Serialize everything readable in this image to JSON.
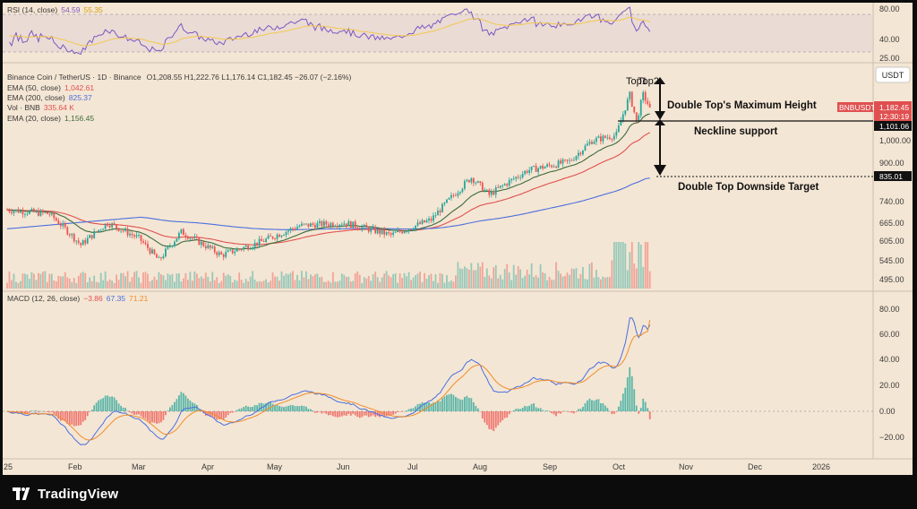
{
  "brand": "TradingView",
  "colors": {
    "background": "#f4e6d4",
    "frame": "#0c0c0c",
    "candle_up": "#26a69a",
    "candle_down": "#ef5350",
    "ema50": "#e05050",
    "ema200": "#4a6fe0",
    "ema20": "#3d6b3d",
    "rsi_line": "#7e57c2",
    "rsi_ma": "#f2c94c",
    "macd_line": "#4a6fe0",
    "signal_line": "#f08c2a",
    "price_tag": "#e05050"
  },
  "rsi": {
    "legend": "RSI (14, close)",
    "value": "54.59",
    "ma_value": "55.35",
    "ticks": [
      "80.00",
      "40.00",
      "25.00"
    ]
  },
  "price": {
    "currency": "USDT",
    "legend_title": "Binance Coin / TetherUS · 1D · Binance",
    "ohlc": "O1,208.55  H1,222.76  L1,176.14  C1,182.45  −26.07 (−2.16%)",
    "indicators": [
      {
        "label": "EMA (50, close)",
        "value": "1,042.61",
        "color": "#e05050"
      },
      {
        "label": "EMA (200, close)",
        "value": "825.37",
        "color": "#4a6fe0"
      },
      {
        "label": "Vol · BNB",
        "value": "335.64 K",
        "color": "#e05050"
      },
      {
        "label": "EMA (20, close)",
        "value": "1,156.45",
        "color": "#3d6b3d"
      }
    ],
    "ticks": [
      "1,000.00",
      "900.00",
      "740.00",
      "665.00",
      "605.00",
      "545.00",
      "495.00"
    ],
    "tag_symbol": "BNBUSDT",
    "tag_price": "1,182.45",
    "tag_time": "12:30:19",
    "neckline_label": "1,101.06",
    "target_label": "835.01"
  },
  "annotations": {
    "top1": "Top1",
    "top2": "Top2",
    "max_height": "Double Top's Maximum Height",
    "neckline": "Neckline support",
    "target": "Double Top Downside Target"
  },
  "macd": {
    "legend": "MACD (12, 26, close)",
    "hist": "−3.86",
    "macd": "67.35",
    "signal": "71.21",
    "ticks": [
      "80.00",
      "60.00",
      "40.00",
      "20.00",
      "0.00",
      "−20.00"
    ]
  },
  "x_axis": [
    "25",
    "Feb",
    "Mar",
    "Apr",
    "May",
    "Jun",
    "Jul",
    "Aug",
    "Sep",
    "Oct",
    "Nov",
    "Dec",
    "2026"
  ],
  "chart_data": {
    "type": "candlestick",
    "title": "Binance Coin / TetherUS · 1D · Binance",
    "x_period": "daily, Jan 2025 - Oct 2025",
    "ylim": [
      440,
      1300
    ],
    "price_keypoints": [
      {
        "date": "2025-01-01",
        "close": 705
      },
      {
        "date": "2025-01-20",
        "close": 690
      },
      {
        "date": "2025-02-03",
        "close": 590
      },
      {
        "date": "2025-02-15",
        "close": 660
      },
      {
        "date": "2025-03-01",
        "close": 610
      },
      {
        "date": "2025-03-10",
        "close": 545
      },
      {
        "date": "2025-03-20",
        "close": 630
      },
      {
        "date": "2025-04-07",
        "close": 560
      },
      {
        "date": "2025-04-25",
        "close": 600
      },
      {
        "date": "2025-05-12",
        "close": 650
      },
      {
        "date": "2025-06-01",
        "close": 660
      },
      {
        "date": "2025-06-22",
        "close": 620
      },
      {
        "date": "2025-07-10",
        "close": 670
      },
      {
        "date": "2025-07-28",
        "close": 830
      },
      {
        "date": "2025-08-05",
        "close": 760
      },
      {
        "date": "2025-08-22",
        "close": 860
      },
      {
        "date": "2025-09-10",
        "close": 900
      },
      {
        "date": "2025-09-20",
        "close": 1000
      },
      {
        "date": "2025-10-01",
        "close": 1030
      },
      {
        "date": "2025-10-07",
        "close": 1260
      },
      {
        "date": "2025-10-10",
        "close": 1101
      },
      {
        "date": "2025-10-13",
        "close": 1260
      },
      {
        "date": "2025-10-16",
        "close": 1182.45
      }
    ],
    "ema50_last": 1042.61,
    "ema200_last": 825.37,
    "ema20_last": 1156.45,
    "neckline": 1101.06,
    "target": 835.01,
    "rsi_last": 54.59,
    "macd_last": {
      "hist": -3.86,
      "macd": 67.35,
      "signal": 71.21
    }
  }
}
